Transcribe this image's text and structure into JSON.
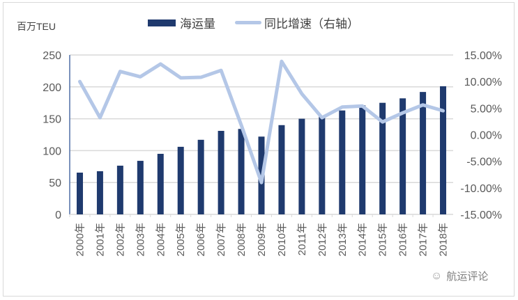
{
  "chart_data": {
    "type": "bar+line",
    "title": "",
    "categories": [
      "2000年",
      "2001年",
      "2002年",
      "2003年",
      "2004年",
      "2005年",
      "2006年",
      "2007年",
      "2008年",
      "2009年",
      "2010年",
      "2011年",
      "2012年",
      "2013年",
      "2014年",
      "2015年",
      "2016年",
      "2017年",
      "2018年"
    ],
    "series": [
      {
        "name": "海运量",
        "type": "bar",
        "axis": "left",
        "color": "#1f3a6e",
        "values": [
          65.5,
          67.7,
          76.4,
          84,
          95,
          106,
          117,
          131,
          134,
          122,
          140,
          150,
          154,
          163,
          171,
          175,
          182,
          192,
          201
        ]
      },
      {
        "name": "同比增速（右轴）",
        "type": "line",
        "axis": "right",
        "color": "#b4c7e7",
        "values": [
          10.0,
          3.2,
          11.9,
          10.9,
          13.3,
          10.7,
          10.8,
          12.1,
          1.8,
          -9.0,
          13.8,
          7.7,
          3.2,
          5.2,
          5.4,
          2.4,
          4.1,
          5.6,
          4.5
        ]
      }
    ],
    "ylabel": "百万TEU",
    "ylim": [
      0,
      250
    ],
    "yticks": [
      0,
      50,
      100,
      150,
      200,
      250
    ],
    "y2lim": [
      -15,
      15
    ],
    "y2ticks": [
      "-15.00%",
      "-10.00%",
      "-5.00%",
      "0.00%",
      "5.00%",
      "10.00%",
      "15.00%"
    ],
    "grid": true,
    "legend_position": "top"
  },
  "legend": {
    "bar_label": "海运量",
    "line_label": "同比增速（右轴）"
  },
  "axis": {
    "unit_label": "百万TEU"
  },
  "watermark": {
    "icon": "wechat-icon",
    "text": "航运评论"
  }
}
